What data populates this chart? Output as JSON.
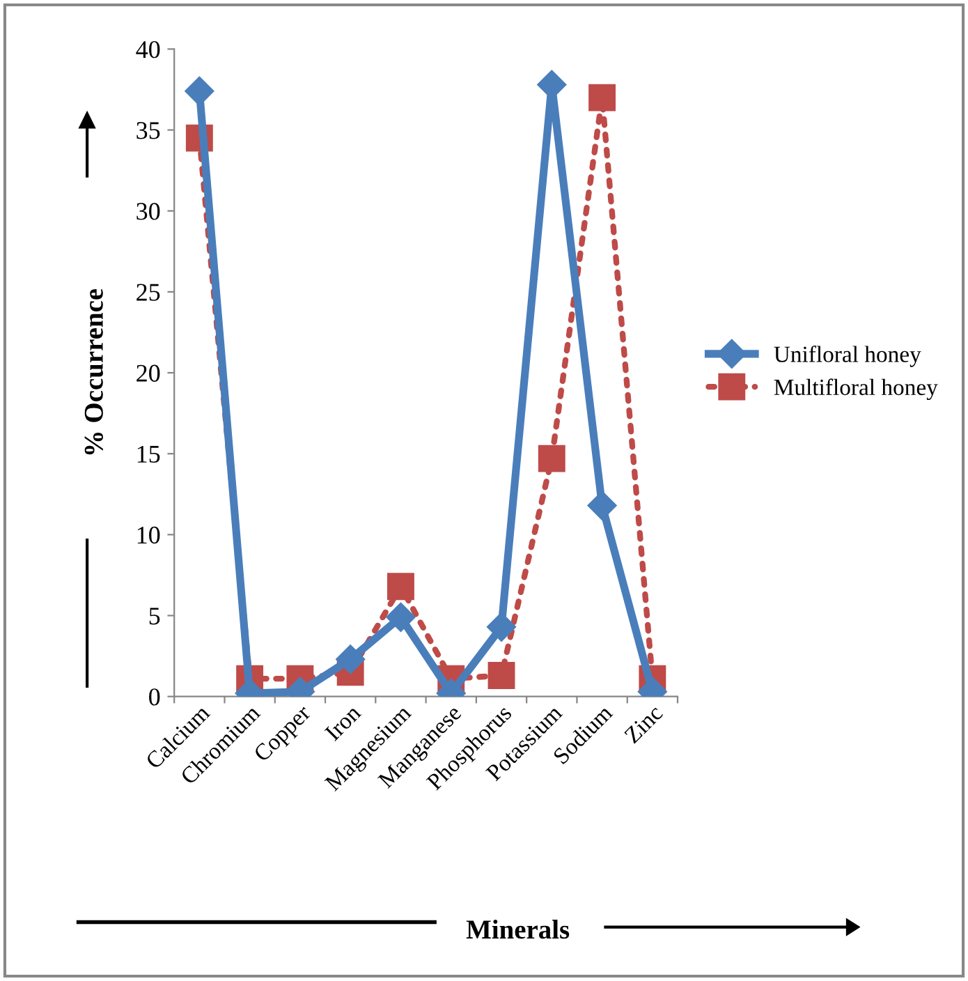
{
  "chart_data": {
    "type": "line",
    "xlabel": "Minerals",
    "ylabel": "% Occurrence",
    "categories": [
      "Calcium",
      "Chromium",
      "Copper",
      "Iron",
      "Magnesium",
      "Manganese",
      "Phosphorus",
      "Potassium",
      "Sodium",
      "Zinc"
    ],
    "series": [
      {
        "name": "Unifloral honey",
        "color": "#4a7ebb",
        "marker": "diamond",
        "line_style": "solid",
        "values": [
          37.4,
          0.2,
          0.3,
          2.3,
          4.9,
          0.2,
          4.3,
          37.8,
          11.8,
          0.3
        ]
      },
      {
        "name": "Multifloral honey",
        "color": "#be4b48",
        "marker": "square",
        "line_style": "dotted",
        "values": [
          34.5,
          1.1,
          1.1,
          1.5,
          6.8,
          1.1,
          1.3,
          14.7,
          37.0,
          1.1
        ]
      }
    ],
    "ylim": [
      0,
      40
    ],
    "yticks": [
      0,
      5,
      10,
      15,
      20,
      25,
      30,
      35,
      40
    ],
    "grid": false,
    "legend": "right"
  }
}
